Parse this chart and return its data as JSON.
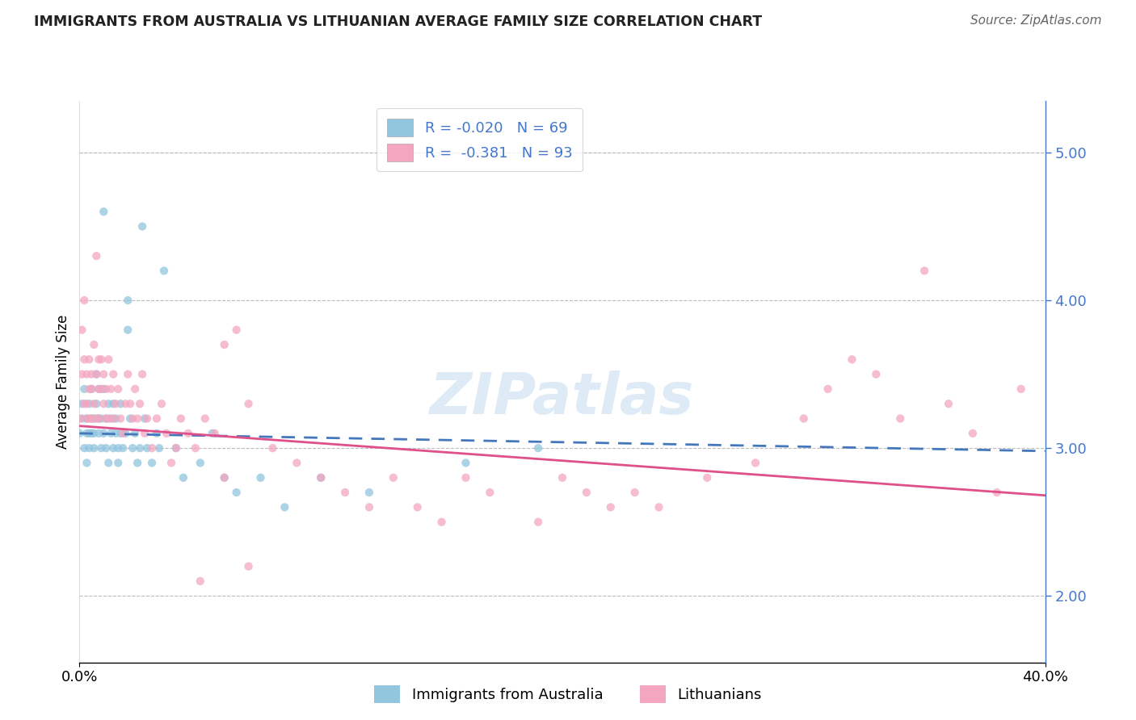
{
  "title": "IMMIGRANTS FROM AUSTRALIA VS LITHUANIAN AVERAGE FAMILY SIZE CORRELATION CHART",
  "source": "Source: ZipAtlas.com",
  "ylabel": "Average Family Size",
  "right_yticks": [
    2.0,
    3.0,
    4.0,
    5.0
  ],
  "legend_label1": "Immigrants from Australia",
  "legend_label2": "Lithuanians",
  "color_blue": "#92c5de",
  "color_pink": "#f4a6c0",
  "line_blue": "#4477bb",
  "line_pink": "#e0508a",
  "dot_blue_R": -0.02,
  "dot_pink_R": -0.381,
  "dot_blue_N": 69,
  "dot_pink_N": 93,
  "xmin": 0.0,
  "xmax": 0.4,
  "ymin": 1.55,
  "ymax": 5.35,
  "watermark": "ZIPatlas",
  "blue_line_x0": 0.0,
  "blue_line_y0": 3.1,
  "blue_line_x1": 0.4,
  "blue_line_y1": 2.98,
  "pink_line_x0": 0.0,
  "pink_line_y0": 3.15,
  "pink_line_x1": 0.4,
  "pink_line_y1": 2.68,
  "blue_scatter_x": [
    0.0,
    0.001,
    0.001,
    0.002,
    0.002,
    0.003,
    0.003,
    0.003,
    0.004,
    0.004,
    0.004,
    0.005,
    0.005,
    0.005,
    0.006,
    0.006,
    0.006,
    0.007,
    0.007,
    0.008,
    0.008,
    0.008,
    0.009,
    0.009,
    0.01,
    0.01,
    0.01,
    0.011,
    0.011,
    0.012,
    0.012,
    0.013,
    0.013,
    0.014,
    0.014,
    0.015,
    0.015,
    0.016,
    0.016,
    0.017,
    0.017,
    0.018,
    0.019,
    0.02,
    0.02,
    0.021,
    0.022,
    0.023,
    0.024,
    0.025,
    0.026,
    0.027,
    0.028,
    0.03,
    0.032,
    0.033,
    0.035,
    0.04,
    0.043,
    0.05,
    0.055,
    0.06,
    0.065,
    0.075,
    0.085,
    0.1,
    0.12,
    0.16,
    0.19
  ],
  "blue_scatter_y": [
    3.1,
    3.2,
    3.3,
    3.0,
    3.4,
    3.1,
    3.2,
    2.9,
    3.1,
    3.0,
    3.3,
    3.2,
    3.1,
    3.4,
    3.0,
    3.2,
    3.1,
    3.5,
    3.3,
    3.2,
    3.4,
    3.1,
    3.0,
    3.2,
    4.6,
    3.4,
    3.1,
    3.2,
    3.0,
    3.3,
    2.9,
    3.1,
    3.2,
    3.0,
    3.3,
    3.1,
    3.2,
    3.0,
    2.9,
    3.1,
    3.3,
    3.0,
    3.1,
    3.8,
    4.0,
    3.2,
    3.0,
    3.1,
    2.9,
    3.0,
    4.5,
    3.2,
    3.0,
    2.9,
    3.1,
    3.0,
    4.2,
    3.0,
    2.8,
    2.9,
    3.1,
    2.8,
    2.7,
    2.8,
    2.6,
    2.8,
    2.7,
    2.9,
    3.0
  ],
  "pink_scatter_x": [
    0.0,
    0.001,
    0.001,
    0.002,
    0.002,
    0.002,
    0.003,
    0.003,
    0.003,
    0.004,
    0.004,
    0.004,
    0.005,
    0.005,
    0.005,
    0.006,
    0.006,
    0.007,
    0.007,
    0.007,
    0.008,
    0.008,
    0.008,
    0.009,
    0.009,
    0.01,
    0.01,
    0.011,
    0.011,
    0.012,
    0.012,
    0.013,
    0.014,
    0.014,
    0.015,
    0.016,
    0.017,
    0.018,
    0.019,
    0.02,
    0.021,
    0.022,
    0.023,
    0.024,
    0.025,
    0.026,
    0.027,
    0.028,
    0.03,
    0.032,
    0.034,
    0.036,
    0.038,
    0.04,
    0.042,
    0.045,
    0.048,
    0.052,
    0.056,
    0.06,
    0.065,
    0.07,
    0.08,
    0.09,
    0.1,
    0.11,
    0.12,
    0.13,
    0.14,
    0.15,
    0.16,
    0.17,
    0.19,
    0.2,
    0.21,
    0.22,
    0.23,
    0.24,
    0.26,
    0.28,
    0.3,
    0.31,
    0.32,
    0.33,
    0.34,
    0.35,
    0.36,
    0.37,
    0.38,
    0.39,
    0.05,
    0.07,
    0.06
  ],
  "pink_scatter_y": [
    3.2,
    3.5,
    3.8,
    3.3,
    3.6,
    4.0,
    3.2,
    3.5,
    3.3,
    3.4,
    3.6,
    3.2,
    3.5,
    3.2,
    3.4,
    3.7,
    3.3,
    4.3,
    3.5,
    3.2,
    3.4,
    3.6,
    3.2,
    3.4,
    3.6,
    3.3,
    3.5,
    3.2,
    3.4,
    3.6,
    3.2,
    3.4,
    3.2,
    3.5,
    3.3,
    3.4,
    3.2,
    3.1,
    3.3,
    3.5,
    3.3,
    3.2,
    3.4,
    3.2,
    3.3,
    3.5,
    3.1,
    3.2,
    3.0,
    3.2,
    3.3,
    3.1,
    2.9,
    3.0,
    3.2,
    3.1,
    3.0,
    3.2,
    3.1,
    2.8,
    3.8,
    3.3,
    3.0,
    2.9,
    2.8,
    2.7,
    2.6,
    2.8,
    2.6,
    2.5,
    2.8,
    2.7,
    2.5,
    2.8,
    2.7,
    2.6,
    2.7,
    2.6,
    2.8,
    2.9,
    3.2,
    3.4,
    3.6,
    3.5,
    3.2,
    4.2,
    3.3,
    3.1,
    2.7,
    3.4,
    2.1,
    2.2,
    3.7
  ]
}
